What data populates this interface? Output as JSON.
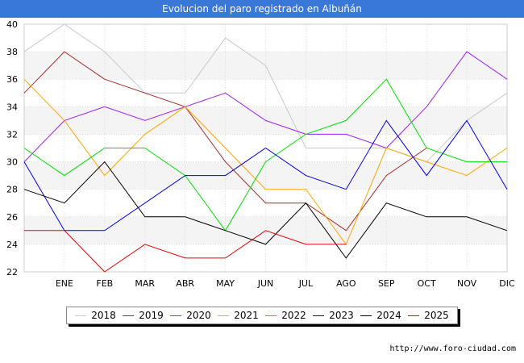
{
  "title": "Evolucion del paro registrado en Albuñán",
  "title_bg": "#3a78d8",
  "source": "http://www.foro-ciudad.com",
  "chart_data": {
    "type": "line",
    "title": "Evolucion del paro registrado en Albuñán",
    "categories": [
      "",
      "ENE",
      "FEB",
      "MAR",
      "ABR",
      "MAY",
      "JUN",
      "JUL",
      "AGO",
      "SEP",
      "OCT",
      "NOV",
      "DIC"
    ],
    "ylim": [
      22,
      40
    ],
    "yticks": [
      22,
      24,
      26,
      28,
      30,
      32,
      34,
      36,
      38,
      40
    ],
    "grid": true,
    "legend_position": "bottom",
    "series": [
      {
        "name": "2018",
        "color": "#c8c8c8",
        "values": [
          38,
          40,
          38,
          35,
          35,
          39,
          37,
          31,
          31,
          31,
          30,
          33,
          35
        ]
      },
      {
        "name": "2019",
        "color": "#a52a2a",
        "values": [
          35,
          38,
          36,
          35,
          34,
          30,
          27,
          27,
          25,
          29,
          31,
          null,
          null
        ]
      },
      {
        "name": "2020",
        "color": "#a020f0",
        "values": [
          30,
          33,
          34,
          33,
          34,
          35,
          33,
          32,
          32,
          31,
          34,
          38,
          36
        ]
      },
      {
        "name": "2021",
        "color": "#ffa500",
        "values": [
          36,
          33,
          29,
          32,
          34,
          31,
          28,
          28,
          24,
          31,
          30,
          29,
          31
        ]
      },
      {
        "name": "2022",
        "color": "#00e000",
        "values": [
          31,
          29,
          31,
          31,
          29,
          25,
          30,
          32,
          33,
          36,
          31,
          30,
          30
        ]
      },
      {
        "name": "2023",
        "color": "#0000e0",
        "values": [
          30,
          25,
          25,
          27,
          29,
          29,
          31,
          29,
          28,
          33,
          29,
          33,
          28
        ]
      },
      {
        "name": "2024",
        "color": "#000000",
        "values": [
          28,
          27,
          30,
          26,
          26,
          25,
          24,
          27,
          23,
          27,
          26,
          26,
          25
        ]
      },
      {
        "name": "2025",
        "color": "#ee0000",
        "values": [
          25,
          25,
          22,
          24,
          23,
          23,
          25,
          24,
          24,
          null,
          null,
          null,
          null
        ]
      }
    ]
  }
}
